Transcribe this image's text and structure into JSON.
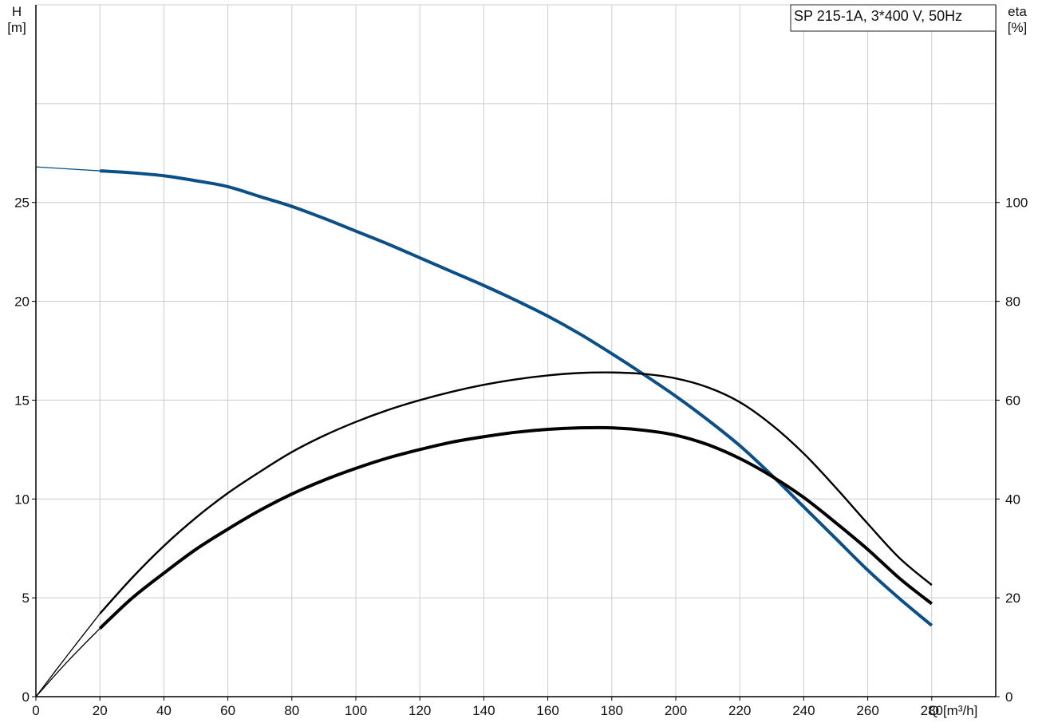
{
  "chart_data": {
    "type": "line",
    "title": "SP 215-1A, 3*400 V, 50Hz",
    "x_axis": {
      "label": "Q [m³/h]",
      "range": [
        0,
        300
      ],
      "ticks": [
        0,
        20,
        40,
        60,
        80,
        100,
        120,
        140,
        160,
        180,
        200,
        220,
        240,
        260,
        280
      ]
    },
    "y_axis_left": {
      "label_line1": "H",
      "label_line2": "[m]",
      "range": [
        0,
        35
      ],
      "ticks": [
        0,
        5,
        10,
        15,
        20,
        25
      ]
    },
    "y_axis_right": {
      "label_line1": "eta",
      "label_line2": "[%]",
      "range": [
        0,
        140
      ],
      "ticks": [
        0,
        20,
        40,
        60,
        80,
        100
      ]
    },
    "grid": true,
    "legend_position": "top-right",
    "colors": {
      "head": "#0b4f87",
      "eta": "#000000",
      "grid": "#cccccc"
    },
    "series": [
      {
        "key": "head_extension",
        "axis": "left",
        "color": "#0b4f87",
        "weight": "thin",
        "x": [
          0,
          20
        ],
        "y": [
          26.8,
          26.6
        ]
      },
      {
        "key": "head",
        "axis": "left",
        "color": "#0b4f87",
        "weight": "thick",
        "x": [
          20,
          30,
          40,
          50,
          60,
          70,
          80,
          90,
          100,
          110,
          120,
          130,
          140,
          150,
          160,
          170,
          180,
          190,
          200,
          210,
          220,
          230,
          240,
          250,
          260,
          270,
          280
        ],
        "y": [
          26.6,
          26.5,
          26.35,
          26.1,
          25.8,
          25.3,
          24.8,
          24.2,
          23.55,
          22.9,
          22.2,
          21.5,
          20.8,
          20.05,
          19.25,
          18.35,
          17.35,
          16.3,
          15.2,
          14.0,
          12.7,
          11.2,
          9.6,
          8.0,
          6.4,
          4.95,
          3.6
        ]
      },
      {
        "key": "eta_upper_extension",
        "axis": "right",
        "color": "#000000",
        "weight": "thin",
        "x": [
          0,
          10,
          20
        ],
        "y": [
          0,
          8.5,
          16.8
        ]
      },
      {
        "key": "eta_upper",
        "axis": "right",
        "color": "#000000",
        "weight": "medium",
        "x": [
          20,
          30,
          40,
          50,
          60,
          70,
          80,
          90,
          100,
          110,
          120,
          130,
          140,
          150,
          160,
          170,
          180,
          190,
          200,
          210,
          220,
          230,
          240,
          250,
          260,
          270,
          280
        ],
        "y": [
          16.8,
          24.0,
          30.5,
          36.2,
          41.2,
          45.5,
          49.5,
          52.8,
          55.6,
          58.0,
          60.0,
          61.7,
          63.1,
          64.2,
          65.0,
          65.5,
          65.6,
          65.3,
          64.4,
          62.6,
          59.6,
          55.0,
          49.2,
          42.3,
          35.0,
          28.0,
          22.6
        ]
      },
      {
        "key": "eta_lower_extension",
        "axis": "right",
        "color": "#000000",
        "weight": "thin",
        "x": [
          0,
          10,
          20
        ],
        "y": [
          0,
          7.2,
          13.8
        ]
      },
      {
        "key": "eta_lower",
        "axis": "right",
        "color": "#000000",
        "weight": "thick",
        "x": [
          20,
          30,
          40,
          50,
          60,
          70,
          80,
          90,
          100,
          110,
          120,
          130,
          140,
          150,
          160,
          170,
          180,
          190,
          200,
          210,
          220,
          230,
          240,
          250,
          260,
          270,
          280
        ],
        "y": [
          13.8,
          19.9,
          25.0,
          29.8,
          33.9,
          37.7,
          41.0,
          43.8,
          46.2,
          48.3,
          50.0,
          51.5,
          52.6,
          53.5,
          54.1,
          54.4,
          54.4,
          53.9,
          52.9,
          51.0,
          48.2,
          44.6,
          40.3,
          35.2,
          29.8,
          23.9,
          18.8
        ]
      }
    ]
  }
}
